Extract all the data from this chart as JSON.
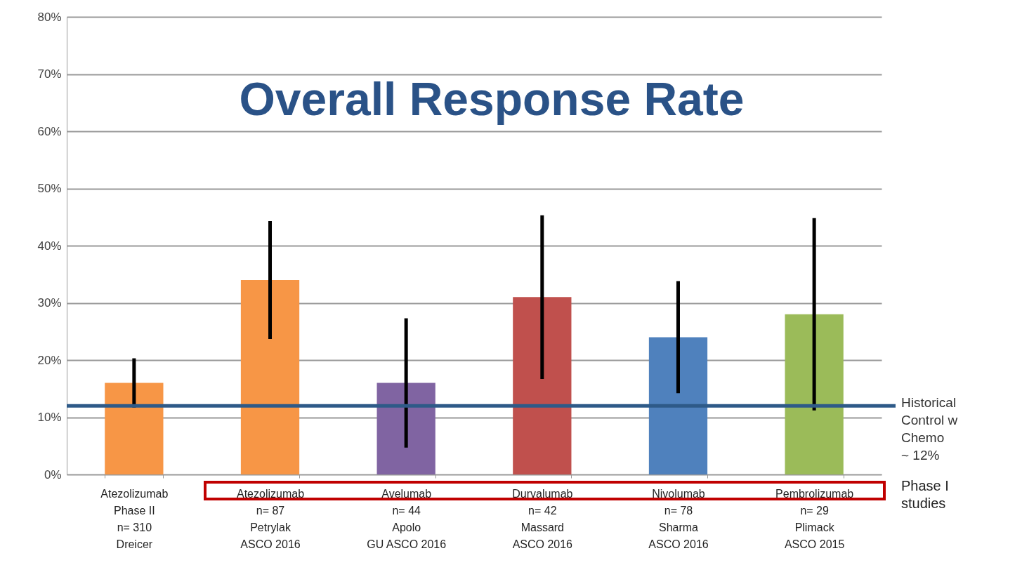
{
  "chart_data": {
    "type": "bar",
    "title": "Overall Response Rate",
    "categories": [
      "Atezolizumab\nPhase II\nn= 310\nDreicer",
      "Atezolizumab\nn= 87\nPetrylak\nASCO 2016",
      "Avelumab\nn= 44\nApolo\nGU ASCO 2016",
      "Durvalumab\nn= 42\nMassard\nASCO 2016",
      "Nivolumab\nn= 78\nSharma\nASCO 2016",
      "Pembrolizumab\nn= 29\nPlimack\nASCO 2015"
    ],
    "values": [
      16,
      34,
      16,
      31,
      24,
      28
    ],
    "colors": [
      "#f79646",
      "#f79646",
      "#8064a2",
      "#c0504d",
      "#4f81bd",
      "#9bbb59"
    ],
    "errors": [
      [
        12,
        20
      ],
      [
        24,
        44
      ],
      [
        5,
        27
      ],
      [
        17,
        45
      ],
      [
        14.5,
        33.5
      ],
      [
        11.5,
        44.5
      ]
    ],
    "ylim": [
      0,
      80
    ],
    "yticks": [
      {
        "value": 0,
        "label": "0%"
      },
      {
        "value": 10,
        "label": "10%"
      },
      {
        "value": 20,
        "label": "20%"
      },
      {
        "value": 30,
        "label": "30%"
      },
      {
        "value": 40,
        "label": "40%"
      },
      {
        "value": 50,
        "label": "50%"
      },
      {
        "value": 60,
        "label": "60%"
      },
      {
        "value": 70,
        "label": "70%"
      },
      {
        "value": 80,
        "label": "80%"
      }
    ],
    "grid": "y",
    "ref_lines": [
      {
        "axis": "y",
        "value": 12,
        "label": "Historical\nControl w\nChemo\n~ 12%",
        "color": "#2e5a88"
      }
    ],
    "annotations": [
      "Phase I\nstudies"
    ]
  }
}
